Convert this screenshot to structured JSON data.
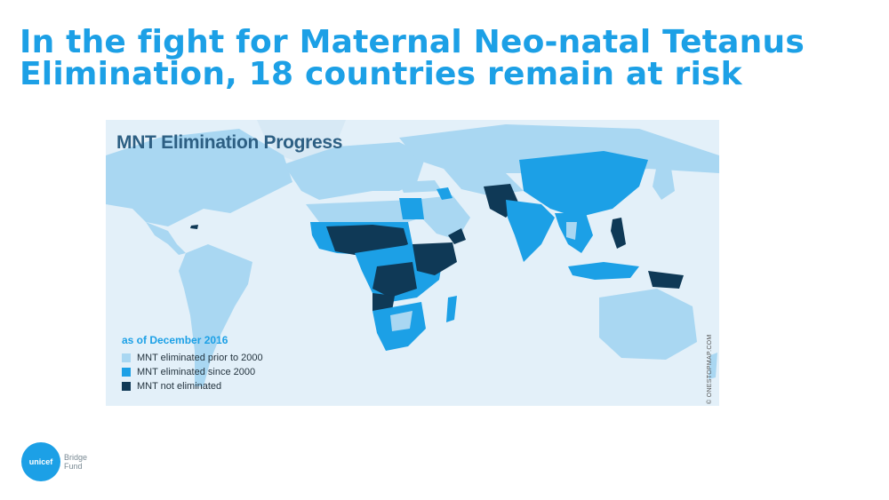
{
  "slide": {
    "title": "In the fight for Maternal Neo-natal Tetanus Elimination, 18 countries remain at risk"
  },
  "map": {
    "title": "MNT Elimination Progress",
    "legend": {
      "heading": "as of December 2016",
      "items": [
        {
          "label": "MNT eliminated prior to 2000",
          "color": "#a9d7f2"
        },
        {
          "label": "MNT eliminated since 2000",
          "color": "#1ca0e6"
        },
        {
          "label": "MNT not eliminated",
          "color": "#0f3956"
        }
      ]
    },
    "credit": "© ONESTOPMAP.COM"
  },
  "brand": {
    "logo_text": "unicef",
    "line1": "Bridge",
    "line2": "Fund"
  }
}
